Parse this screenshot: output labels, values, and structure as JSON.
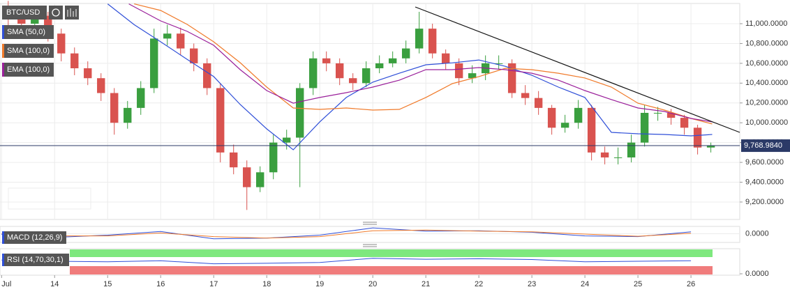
{
  "chart_data": {
    "type": "candlestick",
    "symbol": "BTC/USD",
    "up_color": "#3a9f3f",
    "down_color": "#d9534f",
    "xlim": [
      12.97,
      26.92
    ],
    "xticks": [
      {
        "value": 13,
        "label": "Jul"
      },
      14,
      15,
      16,
      17,
      18,
      19,
      20,
      21,
      22,
      23,
      24,
      25,
      26
    ],
    "ylim": [
      9024,
      11204
    ],
    "yticks": [
      {
        "value": 9200,
        "label": "9,200.0000"
      },
      {
        "value": 9400,
        "label": "9,400.0000"
      },
      {
        "value": 9600,
        "label": "9,600.0000"
      },
      {
        "value": 9800,
        "label": "9,800.0000"
      },
      {
        "value": 10000,
        "label": "10,000.0000"
      },
      {
        "value": 10200,
        "label": "10,200.0000"
      },
      {
        "value": 10400,
        "label": "10,400.0000"
      },
      {
        "value": 10600,
        "label": "10,600.0000"
      },
      {
        "value": 10800,
        "label": "10,800.0000"
      },
      {
        "value": 11000,
        "label": "11,000.0000"
      }
    ],
    "grid": true,
    "last_price": 9768.984,
    "last_price_label": "9,768.9840",
    "candles": {
      "x": [
        13.125,
        13.375,
        13.625,
        13.875,
        14.125,
        14.375,
        14.625,
        14.875,
        15.125,
        15.375,
        15.625,
        15.875,
        16.125,
        16.375,
        16.625,
        16.875,
        17.125,
        17.375,
        17.625,
        17.875,
        18.125,
        18.375,
        18.625,
        18.875,
        19.125,
        19.375,
        19.625,
        19.875,
        20.125,
        20.375,
        20.625,
        20.875,
        21.125,
        21.375,
        21.625,
        21.875,
        22.125,
        22.375,
        22.625,
        22.875,
        23.125,
        23.375,
        23.625,
        23.875,
        24.125,
        24.375,
        24.625,
        24.875,
        25.125,
        25.375,
        25.625,
        25.875,
        26.125,
        26.375
      ],
      "open": [
        11150,
        11050,
        11000,
        11080,
        10900,
        10700,
        10550,
        10450,
        10300,
        10000,
        10150,
        10350,
        10850,
        10900,
        10750,
        10600,
        10350,
        9700,
        9550,
        9350,
        9500,
        9800,
        9850,
        10350,
        10650,
        10600,
        10450,
        10400,
        10550,
        10600,
        10650,
        10750,
        10950,
        10700,
        10600,
        10450,
        10500,
        10600,
        10600,
        10300,
        10250,
        10150,
        9950,
        10000,
        10150,
        9700,
        9650,
        9650,
        9800,
        10100,
        10100,
        10050,
        9950,
        9750
      ],
      "high": [
        11230,
        11150,
        11160,
        11120,
        10950,
        10760,
        10620,
        10500,
        10350,
        10220,
        10420,
        10950,
        10990,
        10960,
        10800,
        10650,
        10400,
        9780,
        9620,
        9560,
        9880,
        9930,
        10400,
        10720,
        10720,
        10650,
        10500,
        10620,
        10680,
        10720,
        10830,
        11120,
        11000,
        10740,
        10650,
        10580,
        10680,
        10680,
        10640,
        10380,
        10320,
        10180,
        10080,
        10230,
        10180,
        9760,
        9750,
        9880,
        10180,
        10160,
        10140,
        10080,
        9980,
        9800
      ],
      "low": [
        10980,
        10920,
        10950,
        10820,
        10620,
        10480,
        10380,
        10220,
        9880,
        9940,
        10080,
        10300,
        10780,
        10680,
        10520,
        10280,
        9600,
        9480,
        9120,
        9300,
        9430,
        9730,
        9350,
        10280,
        10520,
        10380,
        10330,
        10360,
        10500,
        10560,
        10600,
        10700,
        10650,
        10540,
        10380,
        10400,
        10430,
        10540,
        10250,
        10180,
        10080,
        9880,
        9900,
        9940,
        9620,
        9580,
        9580,
        9600,
        9760,
        10020,
        9980,
        9880,
        9680,
        9700
      ],
      "close": [
        11050,
        11000,
        11080,
        10900,
        10700,
        10550,
        10450,
        10300,
        10000,
        10150,
        10350,
        10850,
        10900,
        10750,
        10600,
        10350,
        9700,
        9550,
        9350,
        9500,
        9800,
        9850,
        10350,
        10650,
        10600,
        10450,
        10400,
        10550,
        10600,
        10650,
        10750,
        10950,
        10700,
        10600,
        10450,
        10500,
        10600,
        10600,
        10300,
        10250,
        10150,
        9950,
        10000,
        10150,
        9700,
        9650,
        9650,
        9800,
        10100,
        10100,
        10050,
        9950,
        9750,
        9769
      ]
    },
    "series": [
      {
        "name": "SMA (50,0)",
        "color": "#2f4fd8",
        "x": [
          15.0,
          15.5,
          16.0,
          16.5,
          17.0,
          17.5,
          18.0,
          18.5,
          19.0,
          19.5,
          20.0,
          20.5,
          21.0,
          21.5,
          22.0,
          22.5,
          23.0,
          23.5,
          24.0,
          24.5,
          25.0,
          25.5,
          26.0,
          26.4
        ],
        "values": [
          11200,
          10990,
          10817,
          10640,
          10466,
          10184,
          9938,
          9727,
          10009,
          10255,
          10410,
          10500,
          10585,
          10605,
          10634,
          10570,
          10480,
          10360,
          10255,
          9903,
          9889,
          9882,
          9868,
          9882
        ]
      },
      {
        "name": "SMA (100,0)",
        "color": "#f07a2a",
        "x": [
          15.5,
          16.0,
          16.5,
          17.0,
          17.5,
          18.0,
          18.5,
          19.0,
          19.5,
          20.0,
          20.5,
          21.0,
          21.5,
          22.0,
          22.5,
          23.0,
          23.5,
          24.0,
          24.5,
          25.0,
          25.5,
          26.0,
          26.4
        ],
        "values": [
          11200,
          11134,
          10993,
          10817,
          10606,
          10360,
          10149,
          10135,
          10149,
          10128,
          10135,
          10255,
          10395,
          10466,
          10550,
          10536,
          10500,
          10452,
          10360,
          10198,
          10128,
          10044,
          9988
        ]
      },
      {
        "name": "EMA (100,0)",
        "color": "#9a1f9a",
        "x": [
          15.4,
          16.0,
          16.5,
          17.0,
          17.5,
          18.0,
          18.5,
          19.0,
          19.5,
          20.0,
          20.5,
          21.0,
          21.5,
          22.0,
          22.5,
          23.0,
          23.5,
          24.0,
          24.5,
          25.0,
          25.5,
          26.0,
          26.4
        ],
        "values": [
          11200,
          11028,
          10923,
          10782,
          10536,
          10325,
          10198,
          10255,
          10304,
          10360,
          10430,
          10536,
          10536,
          10557,
          10536,
          10500,
          10430,
          10325,
          10234,
          10149,
          10114,
          10044,
          10009
        ]
      }
    ],
    "trendline": {
      "color": "#111111",
      "x": [
        20.8,
        26.92
      ],
      "values": [
        11169,
        9903
      ]
    },
    "macd": {
      "name": "MACD (12,26,9)",
      "ylim": [
        -120,
        100
      ],
      "yticks": [
        {
          "value": 0,
          "label": "0.0000"
        }
      ],
      "x": [
        13,
        14,
        15,
        16,
        17,
        18,
        19,
        20,
        21,
        22,
        23,
        24,
        25,
        26
      ],
      "macd": [
        -10,
        -50,
        -20,
        30,
        -70,
        -60,
        -20,
        80,
        35,
        40,
        20,
        -30,
        -40,
        25
      ],
      "signal": [
        0,
        -30,
        -30,
        10,
        -40,
        -60,
        -40,
        40,
        50,
        35,
        25,
        -5,
        -35,
        5
      ],
      "macd_color": "#2f4fd8",
      "signal_color": "#f07a2a"
    },
    "rsi": {
      "name": "RSI (14,70,30,1)",
      "ylim": [
        0,
        100
      ],
      "yticks": [
        {
          "value": 0,
          "label": "0.0000"
        }
      ],
      "x": [
        13,
        14,
        15,
        16,
        17,
        18,
        19,
        20,
        21,
        22,
        23,
        24,
        25,
        26
      ],
      "values": [
        55,
        50,
        48,
        52,
        40,
        42,
        45,
        62,
        58,
        60,
        57,
        48,
        50,
        52
      ],
      "color": "#2f4fd8"
    }
  }
}
